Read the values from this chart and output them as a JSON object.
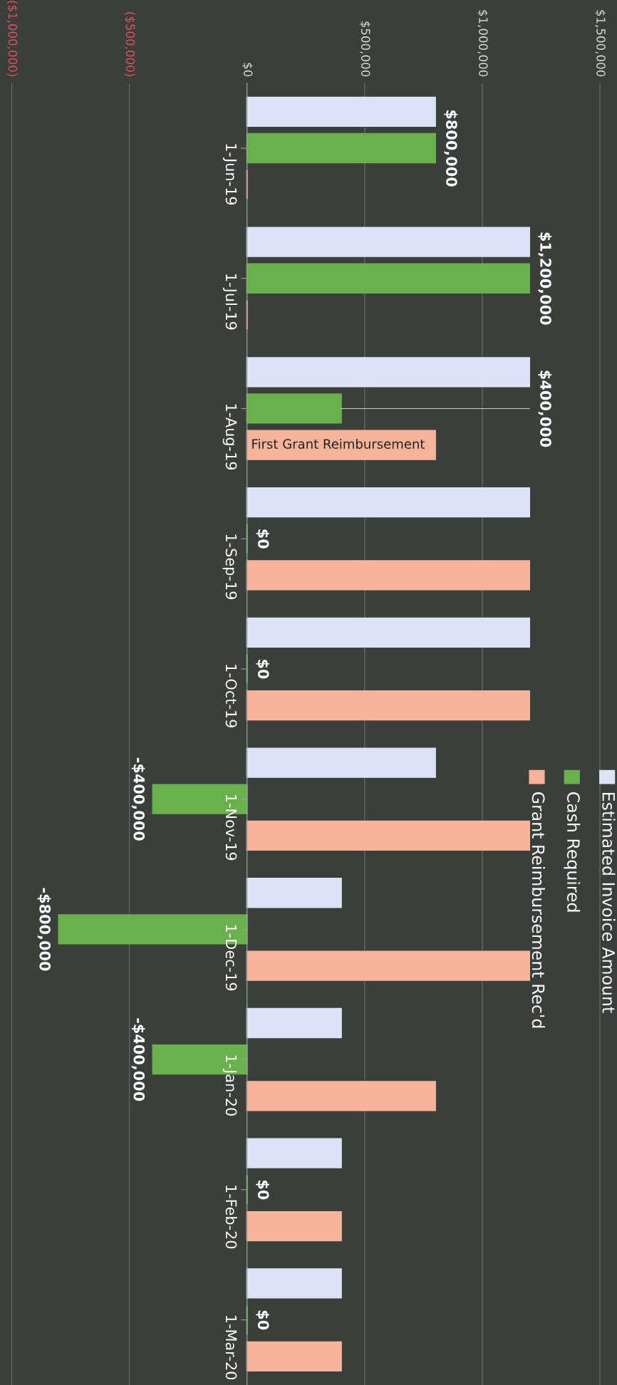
{
  "chart_data": {
    "type": "bar",
    "orientation": "horizontal",
    "categories": [
      "1-Jun-19",
      "1-Jul-19",
      "1-Aug-19",
      "1-Sep-19",
      "1-Oct-19",
      "1-Nov-19",
      "1-Dec-19",
      "1-Jan-20",
      "1-Feb-20",
      "1-Mar-20"
    ],
    "series": [
      {
        "name": "Estimated Invoice Amount",
        "color": "#dde3f5",
        "values": [
          800000,
          1200000,
          1200000,
          1200000,
          1200000,
          800000,
          400000,
          400000,
          400000,
          400000
        ]
      },
      {
        "name": "Cash Required",
        "color": "#6ab04c",
        "values": [
          800000,
          1200000,
          400000,
          0,
          0,
          -400000,
          -800000,
          -400000,
          0,
          0
        ],
        "value_labels": [
          "$800,000",
          "$1,200,000",
          "$400,000",
          "$0",
          "$0",
          "-$400,000",
          "-$800,000",
          "-$400,000",
          "$0",
          "$0"
        ]
      },
      {
        "name": "Grant Reimbursement Rec'd",
        "color": "#f7b49a",
        "values": [
          0,
          0,
          800000,
          1200000,
          1200000,
          1200000,
          1200000,
          800000,
          400000,
          400000
        ]
      }
    ],
    "xlim": [
      -1050000,
      1570000
    ],
    "xticks": [
      {
        "value": -1000000,
        "label": "($1,000,000)"
      },
      {
        "value": -500000,
        "label": "($500,000)"
      },
      {
        "value": 0,
        "label": "$0"
      },
      {
        "value": 500000,
        "label": "$500,000"
      },
      {
        "value": 1000000,
        "label": "$1,000,000"
      },
      {
        "value": 1500000,
        "label": "$1,500,000"
      }
    ],
    "annotations": [
      {
        "text": "First Grant Reimbursement",
        "x": 0,
        "y": "1-Aug-19"
      }
    ],
    "grid": "x",
    "legend": "bottom right"
  }
}
